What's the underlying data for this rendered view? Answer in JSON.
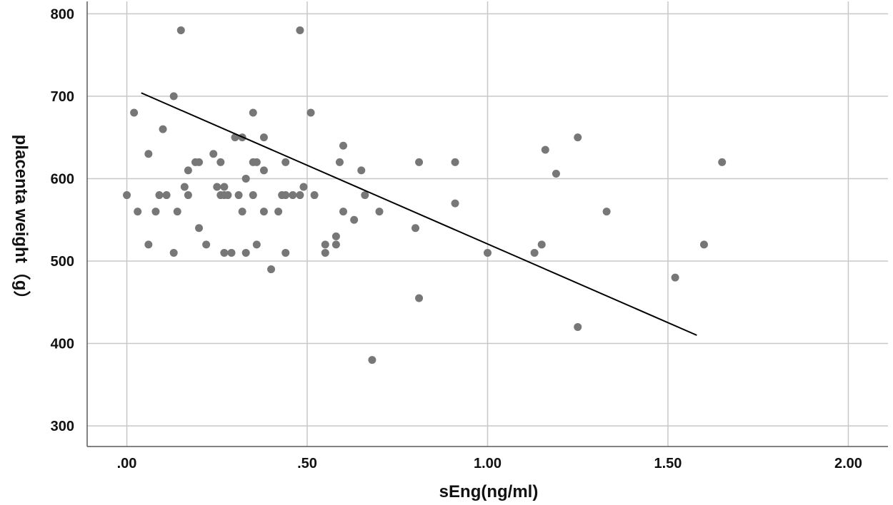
{
  "chart_data": {
    "type": "scatter",
    "title": "",
    "xlabel": "sEng(ng/ml)",
    "ylabel": "placenta weight（g）",
    "xlim": [
      -0.11,
      2.11
    ],
    "ylim": [
      275,
      815
    ],
    "x_ticks": [
      0,
      0.5,
      1.0,
      1.5,
      2.0
    ],
    "x_tick_labels": [
      ".00",
      ".50",
      "1.00",
      "1.50",
      "2.00"
    ],
    "y_ticks": [
      300,
      400,
      500,
      600,
      700,
      800
    ],
    "y_tick_labels": [
      "300",
      "400",
      "500",
      "600",
      "700",
      "800"
    ],
    "grid": true,
    "legend": "none",
    "colors": {
      "points": "#777777",
      "fit_line": "#000000",
      "grid": "#c8c8c8"
    },
    "points": [
      {
        "x": 0.0,
        "y": 580
      },
      {
        "x": 0.02,
        "y": 680
      },
      {
        "x": 0.03,
        "y": 560
      },
      {
        "x": 0.06,
        "y": 630
      },
      {
        "x": 0.06,
        "y": 520
      },
      {
        "x": 0.08,
        "y": 560
      },
      {
        "x": 0.09,
        "y": 580
      },
      {
        "x": 0.1,
        "y": 660
      },
      {
        "x": 0.11,
        "y": 580
      },
      {
        "x": 0.13,
        "y": 700
      },
      {
        "x": 0.13,
        "y": 510
      },
      {
        "x": 0.14,
        "y": 560
      },
      {
        "x": 0.15,
        "y": 780
      },
      {
        "x": 0.16,
        "y": 590
      },
      {
        "x": 0.17,
        "y": 610
      },
      {
        "x": 0.17,
        "y": 580
      },
      {
        "x": 0.19,
        "y": 620
      },
      {
        "x": 0.2,
        "y": 620
      },
      {
        "x": 0.2,
        "y": 540
      },
      {
        "x": 0.22,
        "y": 520
      },
      {
        "x": 0.24,
        "y": 630
      },
      {
        "x": 0.25,
        "y": 590
      },
      {
        "x": 0.26,
        "y": 620
      },
      {
        "x": 0.26,
        "y": 580
      },
      {
        "x": 0.27,
        "y": 590
      },
      {
        "x": 0.27,
        "y": 580
      },
      {
        "x": 0.27,
        "y": 510
      },
      {
        "x": 0.28,
        "y": 580
      },
      {
        "x": 0.29,
        "y": 510
      },
      {
        "x": 0.3,
        "y": 650
      },
      {
        "x": 0.31,
        "y": 580
      },
      {
        "x": 0.32,
        "y": 650
      },
      {
        "x": 0.32,
        "y": 560
      },
      {
        "x": 0.33,
        "y": 600
      },
      {
        "x": 0.33,
        "y": 510
      },
      {
        "x": 0.35,
        "y": 680
      },
      {
        "x": 0.35,
        "y": 620
      },
      {
        "x": 0.35,
        "y": 580
      },
      {
        "x": 0.36,
        "y": 620
      },
      {
        "x": 0.36,
        "y": 520
      },
      {
        "x": 0.38,
        "y": 650
      },
      {
        "x": 0.38,
        "y": 610
      },
      {
        "x": 0.38,
        "y": 560
      },
      {
        "x": 0.4,
        "y": 490
      },
      {
        "x": 0.42,
        "y": 560
      },
      {
        "x": 0.43,
        "y": 580
      },
      {
        "x": 0.44,
        "y": 620
      },
      {
        "x": 0.44,
        "y": 580
      },
      {
        "x": 0.44,
        "y": 510
      },
      {
        "x": 0.46,
        "y": 580
      },
      {
        "x": 0.48,
        "y": 780
      },
      {
        "x": 0.48,
        "y": 580
      },
      {
        "x": 0.49,
        "y": 590
      },
      {
        "x": 0.51,
        "y": 680
      },
      {
        "x": 0.52,
        "y": 580
      },
      {
        "x": 0.55,
        "y": 520
      },
      {
        "x": 0.55,
        "y": 510
      },
      {
        "x": 0.58,
        "y": 530
      },
      {
        "x": 0.58,
        "y": 520
      },
      {
        "x": 0.59,
        "y": 620
      },
      {
        "x": 0.6,
        "y": 640
      },
      {
        "x": 0.6,
        "y": 560
      },
      {
        "x": 0.63,
        "y": 550
      },
      {
        "x": 0.65,
        "y": 610
      },
      {
        "x": 0.66,
        "y": 580
      },
      {
        "x": 0.68,
        "y": 380
      },
      {
        "x": 0.7,
        "y": 560
      },
      {
        "x": 0.8,
        "y": 540
      },
      {
        "x": 0.81,
        "y": 620
      },
      {
        "x": 0.81,
        "y": 455
      },
      {
        "x": 0.91,
        "y": 620
      },
      {
        "x": 0.91,
        "y": 570
      },
      {
        "x": 1.0,
        "y": 510
      },
      {
        "x": 1.13,
        "y": 510
      },
      {
        "x": 1.15,
        "y": 520
      },
      {
        "x": 1.16,
        "y": 635
      },
      {
        "x": 1.19,
        "y": 606
      },
      {
        "x": 1.25,
        "y": 650
      },
      {
        "x": 1.25,
        "y": 420
      },
      {
        "x": 1.33,
        "y": 560
      },
      {
        "x": 1.52,
        "y": 480
      },
      {
        "x": 1.6,
        "y": 520
      },
      {
        "x": 1.65,
        "y": 620
      }
    ],
    "fit_line": [
      {
        "x": 0.04,
        "y": 704
      },
      {
        "x": 1.58,
        "y": 410
      }
    ]
  }
}
